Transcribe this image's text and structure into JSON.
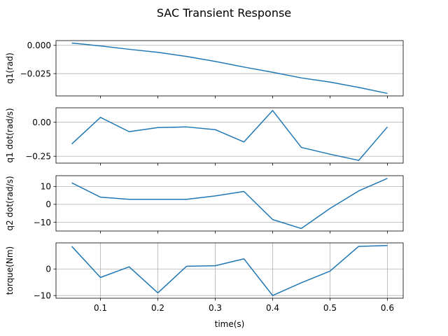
{
  "figure": {
    "title": "SAC Transient Response",
    "xlabel": "time(s)",
    "line_color": "#1f77b4",
    "grid_color": "#b0b0b0"
  },
  "chart_data": [
    {
      "type": "line",
      "ylabel": "q1(rad)",
      "x": [
        0.05,
        0.1,
        0.15,
        0.2,
        0.25,
        0.3,
        0.35,
        0.4,
        0.45,
        0.5,
        0.55,
        0.6
      ],
      "values": [
        0.002,
        -0.0005,
        -0.0035,
        -0.0062,
        -0.0098,
        -0.0142,
        -0.0192,
        -0.0238,
        -0.0288,
        -0.0325,
        -0.0372,
        -0.0425
      ],
      "xlim": [
        0.0225,
        0.6275
      ],
      "ylim": [
        -0.0447,
        0.0042
      ],
      "yticks": [
        0.0,
        -0.025
      ],
      "ytick_labels": [
        "0.000",
        "−0.025"
      ],
      "xticks": [
        0.1,
        0.2,
        0.3,
        0.4,
        0.5,
        0.6
      ],
      "grid": "y"
    },
    {
      "type": "line",
      "ylabel": "q1 dot(rad/s)",
      "x": [
        0.05,
        0.1,
        0.15,
        0.2,
        0.25,
        0.3,
        0.35,
        0.4,
        0.45,
        0.5,
        0.55,
        0.6
      ],
      "values": [
        -0.16,
        0.035,
        -0.07,
        -0.04,
        -0.035,
        -0.055,
        -0.145,
        0.085,
        -0.185,
        -0.235,
        -0.28,
        -0.035
      ],
      "xlim": [
        0.0225,
        0.6275
      ],
      "ylim": [
        -0.3,
        0.105
      ],
      "yticks": [
        0.0,
        -0.25
      ],
      "ytick_labels": [
        "0.00",
        "−0.25"
      ],
      "xticks": [
        0.1,
        0.2,
        0.3,
        0.4,
        0.5,
        0.6
      ],
      "grid": "y"
    },
    {
      "type": "line",
      "ylabel": "q2 dot(rad/s)",
      "x": [
        0.05,
        0.1,
        0.15,
        0.2,
        0.25,
        0.3,
        0.35,
        0.4,
        0.45,
        0.5,
        0.55,
        0.6
      ],
      "values": [
        12,
        4,
        2.8,
        2.8,
        2.8,
        4.7,
        7.2,
        -8.5,
        -13.5,
        -2.3,
        7.5,
        14.5
      ],
      "xlim": [
        0.0225,
        0.6275
      ],
      "ylim": [
        -14.9,
        16.0
      ],
      "yticks": [
        10,
        0,
        -10
      ],
      "ytick_labels": [
        "10",
        "0",
        "−10"
      ],
      "xticks": [
        0.1,
        0.2,
        0.3,
        0.4,
        0.5,
        0.6
      ],
      "grid": "y"
    },
    {
      "type": "line",
      "ylabel": "torque(Nm)",
      "x": [
        0.05,
        0.1,
        0.15,
        0.2,
        0.25,
        0.3,
        0.35,
        0.4,
        0.45,
        0.5,
        0.55,
        0.6
      ],
      "values": [
        8.5,
        -3.2,
        0.8,
        -9,
        1,
        1.2,
        3.8,
        -10,
        -5.2,
        -0.8,
        8.5,
        8.8
      ],
      "xlim": [
        0.0225,
        0.6275
      ],
      "ylim": [
        -11.0,
        9.8
      ],
      "yticks": [
        0,
        -10
      ],
      "ytick_labels": [
        "0",
        "−10"
      ],
      "xticks": [
        0.1,
        0.2,
        0.3,
        0.4,
        0.5,
        0.6
      ],
      "xtick_labels": [
        "0.1",
        "0.2",
        "0.3",
        "0.4",
        "0.5",
        "0.6"
      ],
      "grid": "both"
    }
  ]
}
